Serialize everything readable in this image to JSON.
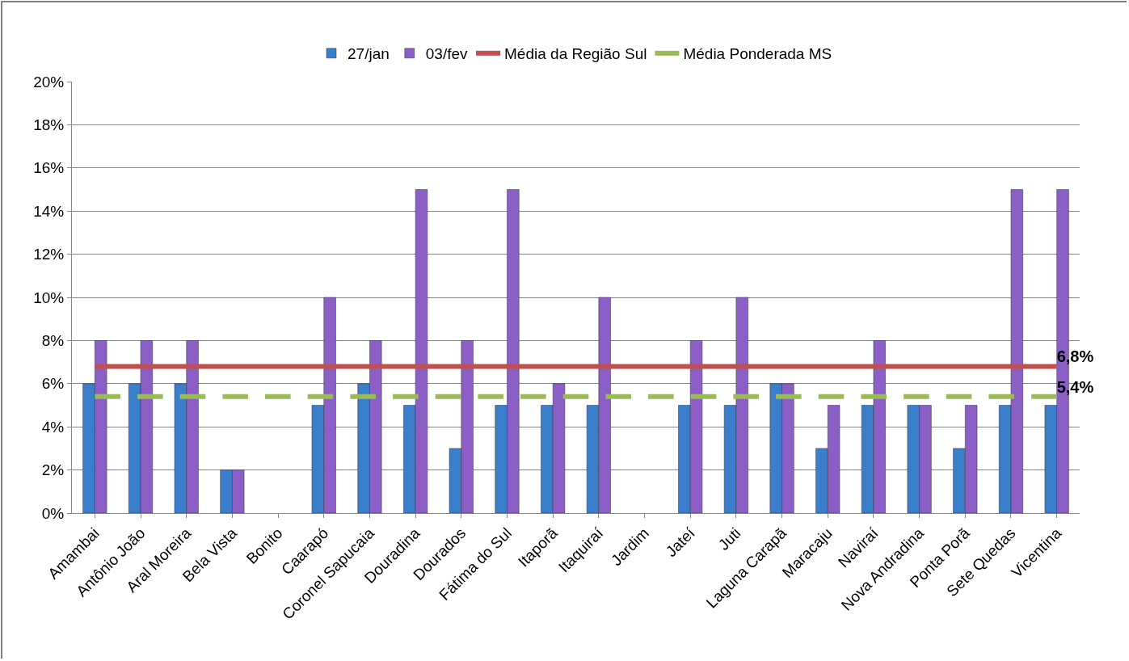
{
  "chart_data": {
    "type": "bar",
    "categories": [
      "Amambai",
      "Antônio João",
      "Aral Moreira",
      "Bela Vista",
      "Bonito",
      "Caarapó",
      "Coronel Sapucaia",
      "Douradina",
      "Dourados",
      "Fátima do Sul",
      "Itaporã",
      "Itaquiraí",
      "Jardim",
      "Jateí",
      "Juti",
      "Laguna Carapã",
      "Maracaju",
      "Naviraí",
      "Nova Andradina",
      "Ponta Porã",
      "Sete Quedas",
      "Vicentina"
    ],
    "series": [
      {
        "name": "27/jan",
        "color": "#3b7fcc",
        "values": [
          6,
          6,
          6,
          2,
          null,
          5,
          6,
          5,
          3,
          5,
          5,
          5,
          null,
          5,
          5,
          6,
          3,
          5,
          5,
          3,
          5,
          5
        ]
      },
      {
        "name": "03/fev",
        "color": "#8b5fc6",
        "values": [
          8,
          8,
          8,
          2,
          null,
          10,
          8,
          15,
          8,
          15,
          6,
          10,
          null,
          8,
          10,
          6,
          5,
          8,
          5,
          5,
          15,
          15
        ]
      },
      {
        "name": "Média da Região Sul",
        "type": "line",
        "line_style": "solid",
        "color": "#c0504d",
        "values": [
          6.8,
          6.8,
          6.8,
          6.8,
          6.8,
          6.8,
          6.8,
          6.8,
          6.8,
          6.8,
          6.8,
          6.8,
          6.8,
          6.8,
          6.8,
          6.8,
          6.8,
          6.8,
          6.8,
          6.8,
          6.8,
          6.8
        ],
        "value_labels": [
          null,
          null,
          null,
          null,
          null,
          null,
          null,
          null,
          null,
          null,
          null,
          null,
          null,
          null,
          null,
          null,
          null,
          null,
          null,
          null,
          null,
          "6,8%"
        ]
      },
      {
        "name": "Média Ponderada MS",
        "type": "line",
        "line_style": "dashed",
        "color": "#9bbb59",
        "values": [
          5.4,
          5.4,
          5.4,
          5.4,
          5.4,
          5.4,
          5.4,
          5.4,
          5.4,
          5.4,
          5.4,
          5.4,
          5.4,
          5.4,
          5.4,
          5.4,
          5.4,
          5.4,
          5.4,
          5.4,
          5.4,
          5.4
        ],
        "value_labels": [
          null,
          null,
          null,
          null,
          null,
          null,
          null,
          null,
          null,
          null,
          null,
          null,
          null,
          null,
          null,
          null,
          null,
          null,
          null,
          null,
          null,
          "5,4%"
        ]
      }
    ],
    "ylim": [
      0,
      20
    ],
    "yticks": [
      {
        "value": 0,
        "label": "0%"
      },
      {
        "value": 2,
        "label": "2%"
      },
      {
        "value": 4,
        "label": "4%"
      },
      {
        "value": 6,
        "label": "6%"
      },
      {
        "value": 8,
        "label": "8%"
      },
      {
        "value": 10,
        "label": "10%"
      },
      {
        "value": 12,
        "label": "12%"
      },
      {
        "value": 14,
        "label": "14%"
      },
      {
        "value": 16,
        "label": "16%"
      },
      {
        "value": 18,
        "label": "18%"
      },
      {
        "value": 20,
        "label": "20%"
      }
    ],
    "grid": "y",
    "legend": "top",
    "marker": "none"
  }
}
